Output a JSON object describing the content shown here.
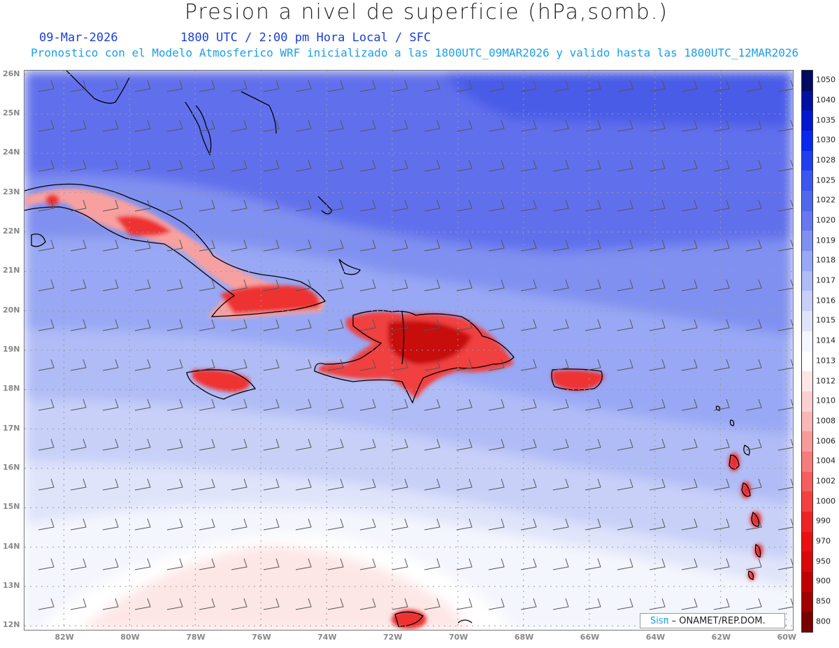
{
  "header": {
    "title": "Presion a nivel de superficie (hPa,somb.)",
    "date": "09-Mar-2026",
    "time_info": "1800 UTC / 2:00 pm Hora Local / SFC",
    "forecast_info": "Pronostico con el Modelo Atmosferico WRF inicializado a las 1800UTC_09MAR2026 y valido hasta las  1800UTC_12MAR2026"
  },
  "map": {
    "latitude_ticks": [
      "26N",
      "25N",
      "24N",
      "23N",
      "22N",
      "21N",
      "20N",
      "19N",
      "18N",
      "17N",
      "16N",
      "15N",
      "14N",
      "13N",
      "12N"
    ],
    "longitude_ticks": [
      "82W",
      "80W",
      "78W",
      "76W",
      "74W",
      "72W",
      "70W",
      "68W",
      "66W",
      "64W",
      "62W",
      "60W"
    ],
    "lat_range": [
      11.9,
      26.1
    ],
    "lon_range": [
      -83.2,
      -59.8
    ],
    "grid": true,
    "islands": [
      {
        "name": "cuba"
      },
      {
        "name": "hispaniola"
      },
      {
        "name": "jamaica"
      },
      {
        "name": "puerto-rico"
      },
      {
        "name": "bahamas"
      },
      {
        "name": "lesser-antilles"
      }
    ]
  },
  "colorbar": {
    "levels": [
      "1050",
      "1040",
      "1035",
      "1030",
      "1028",
      "1025",
      "1022",
      "1020",
      "1019",
      "1018",
      "1017",
      "1016",
      "1015",
      "1014",
      "1013",
      "1012",
      "1010",
      "1008",
      "1006",
      "1004",
      "1002",
      "1000",
      "990",
      "970",
      "950",
      "900",
      "850",
      "800"
    ],
    "colors": [
      "#000a60",
      "#0010a0",
      "#0018d0",
      "#0828f0",
      "#2040f0",
      "#3a58f0",
      "#5068ee",
      "#6878f0",
      "#8090f0",
      "#98a8f4",
      "#b0bcf6",
      "#c8d0f8",
      "#e0e4fa",
      "#f4f6fd",
      "#ffffff",
      "#fde6e6",
      "#fcd0d0",
      "#fab6b6",
      "#f89a9a",
      "#f67c7c",
      "#f45e5e",
      "#f24040",
      "#ee2222",
      "#e81010",
      "#d80808",
      "#c00000",
      "#a00000",
      "#780000"
    ]
  },
  "credit": {
    "brand": "Sisπ",
    "org": "– ONAMET/REP.DOM."
  }
}
